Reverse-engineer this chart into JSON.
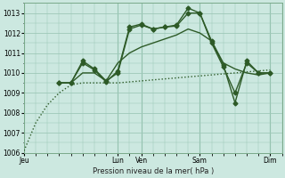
{
  "background_color": "#cce8e0",
  "plot_bg_color": "#cce8e0",
  "grid_color": "#9ec8b8",
  "line_color": "#2d5a27",
  "xlabel": "Pression niveau de la mer( hPa )",
  "ylim": [
    1006,
    1013.5
  ],
  "yticks": [
    1006,
    1007,
    1008,
    1009,
    1010,
    1011,
    1012,
    1013
  ],
  "day_labels": [
    "Jeu",
    "Lun",
    "Ven",
    "Sam",
    "Dim"
  ],
  "day_positions": [
    0,
    16,
    20,
    30,
    42
  ],
  "xlim": [
    0,
    44
  ],
  "series": [
    {
      "x": [
        0,
        2,
        4,
        6,
        8,
        10,
        12,
        14,
        16,
        18,
        20,
        22,
        24,
        26,
        28,
        30,
        32,
        34,
        36,
        38,
        40,
        42
      ],
      "y": [
        1006.1,
        1007.5,
        1008.4,
        1009.0,
        1009.4,
        1009.5,
        1009.5,
        1009.5,
        1009.5,
        1009.55,
        1009.6,
        1009.65,
        1009.7,
        1009.75,
        1009.8,
        1009.85,
        1009.9,
        1009.95,
        1010.0,
        1010.05,
        1010.1,
        1010.15
      ],
      "style": "dotted",
      "marker": null,
      "lw": 1.0,
      "ms": 0
    },
    {
      "x": [
        6,
        8,
        10,
        12,
        14,
        16,
        18,
        20,
        22,
        24,
        26,
        28,
        30,
        32,
        34,
        36,
        38,
        40,
        42
      ],
      "y": [
        1009.5,
        1009.5,
        1010.6,
        1010.2,
        1009.6,
        1010.0,
        1012.2,
        1012.4,
        1012.2,
        1012.3,
        1012.35,
        1013.0,
        1013.0,
        1011.5,
        1010.3,
        1009.0,
        1010.5,
        1010.0,
        1010.0
      ],
      "style": "solid",
      "marker": "D",
      "lw": 1.0,
      "ms": 2.5
    },
    {
      "x": [
        6,
        8,
        10,
        12,
        14,
        16,
        18,
        20,
        22,
        24,
        26,
        28,
        30,
        32,
        34,
        36,
        38,
        40,
        42
      ],
      "y": [
        1009.5,
        1009.5,
        1010.5,
        1010.15,
        1009.55,
        1010.1,
        1012.3,
        1012.45,
        1012.2,
        1012.3,
        1012.4,
        1013.25,
        1013.0,
        1011.6,
        1010.4,
        1008.5,
        1010.6,
        1010.0,
        1010.0
      ],
      "style": "solid",
      "marker": "D",
      "lw": 1.0,
      "ms": 2.5
    },
    {
      "x": [
        6,
        8,
        10,
        12,
        14,
        16,
        18,
        20,
        22,
        24,
        26,
        28,
        30,
        32,
        34,
        36,
        38,
        40,
        42
      ],
      "y": [
        1009.5,
        1009.5,
        1010.0,
        1010.0,
        1009.6,
        1010.5,
        1011.0,
        1011.3,
        1011.5,
        1011.7,
        1011.9,
        1012.2,
        1012.0,
        1011.6,
        1010.5,
        1010.2,
        1010.0,
        1009.9,
        1010.0
      ],
      "style": "solid",
      "marker": null,
      "lw": 1.0,
      "ms": 0
    }
  ]
}
